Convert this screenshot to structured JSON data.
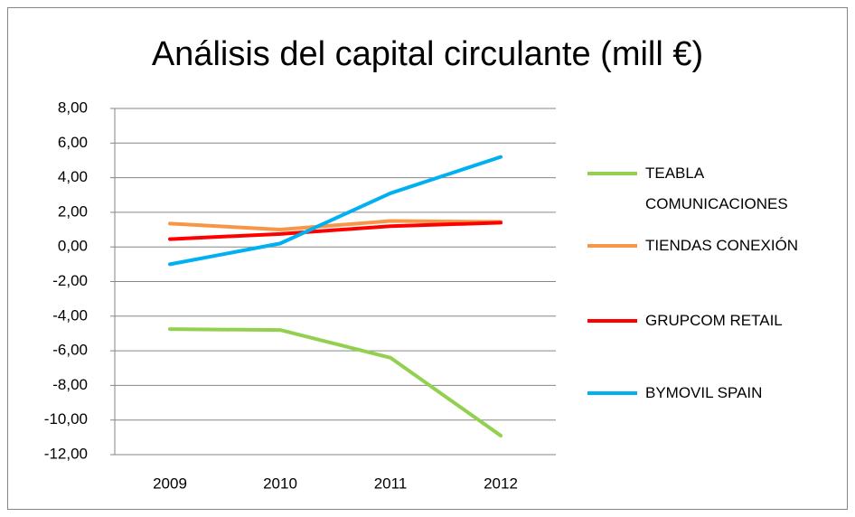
{
  "chart_data": {
    "type": "line",
    "title": "Análisis del capital circulante (mill €)",
    "categories": [
      "2009",
      "2010",
      "2011",
      "2012"
    ],
    "series": [
      {
        "name": "TEABLA COMUNICACIONES",
        "color": "#92d050",
        "values": [
          -4.75,
          -4.8,
          -6.4,
          -10.9
        ]
      },
      {
        "name": "TIENDAS CONEXIÓN",
        "color": "#f79646",
        "values": [
          1.35,
          1.0,
          1.5,
          1.45
        ]
      },
      {
        "name": "GRUPCOM RETAIL",
        "color": "#ff0000",
        "values": [
          0.45,
          0.75,
          1.2,
          1.4
        ]
      },
      {
        "name": "BYMOVIL SPAIN",
        "color": "#00b0f0",
        "values": [
          -1.0,
          0.2,
          3.1,
          5.2
        ]
      }
    ],
    "ylim": [
      -12,
      8
    ],
    "yticks": [
      {
        "value": -12,
        "label": "-12,00"
      },
      {
        "value": -10,
        "label": "-10,00"
      },
      {
        "value": -8,
        "label": "-8,00"
      },
      {
        "value": -6,
        "label": "-6,00"
      },
      {
        "value": -4,
        "label": "-4,00"
      },
      {
        "value": -2,
        "label": "-2,00"
      },
      {
        "value": 0,
        "label": "0,00"
      },
      {
        "value": 2,
        "label": "2,00"
      },
      {
        "value": 4,
        "label": "4,00"
      },
      {
        "value": 6,
        "label": "6,00"
      },
      {
        "value": 8,
        "label": "8,00"
      }
    ],
    "grid": true
  }
}
